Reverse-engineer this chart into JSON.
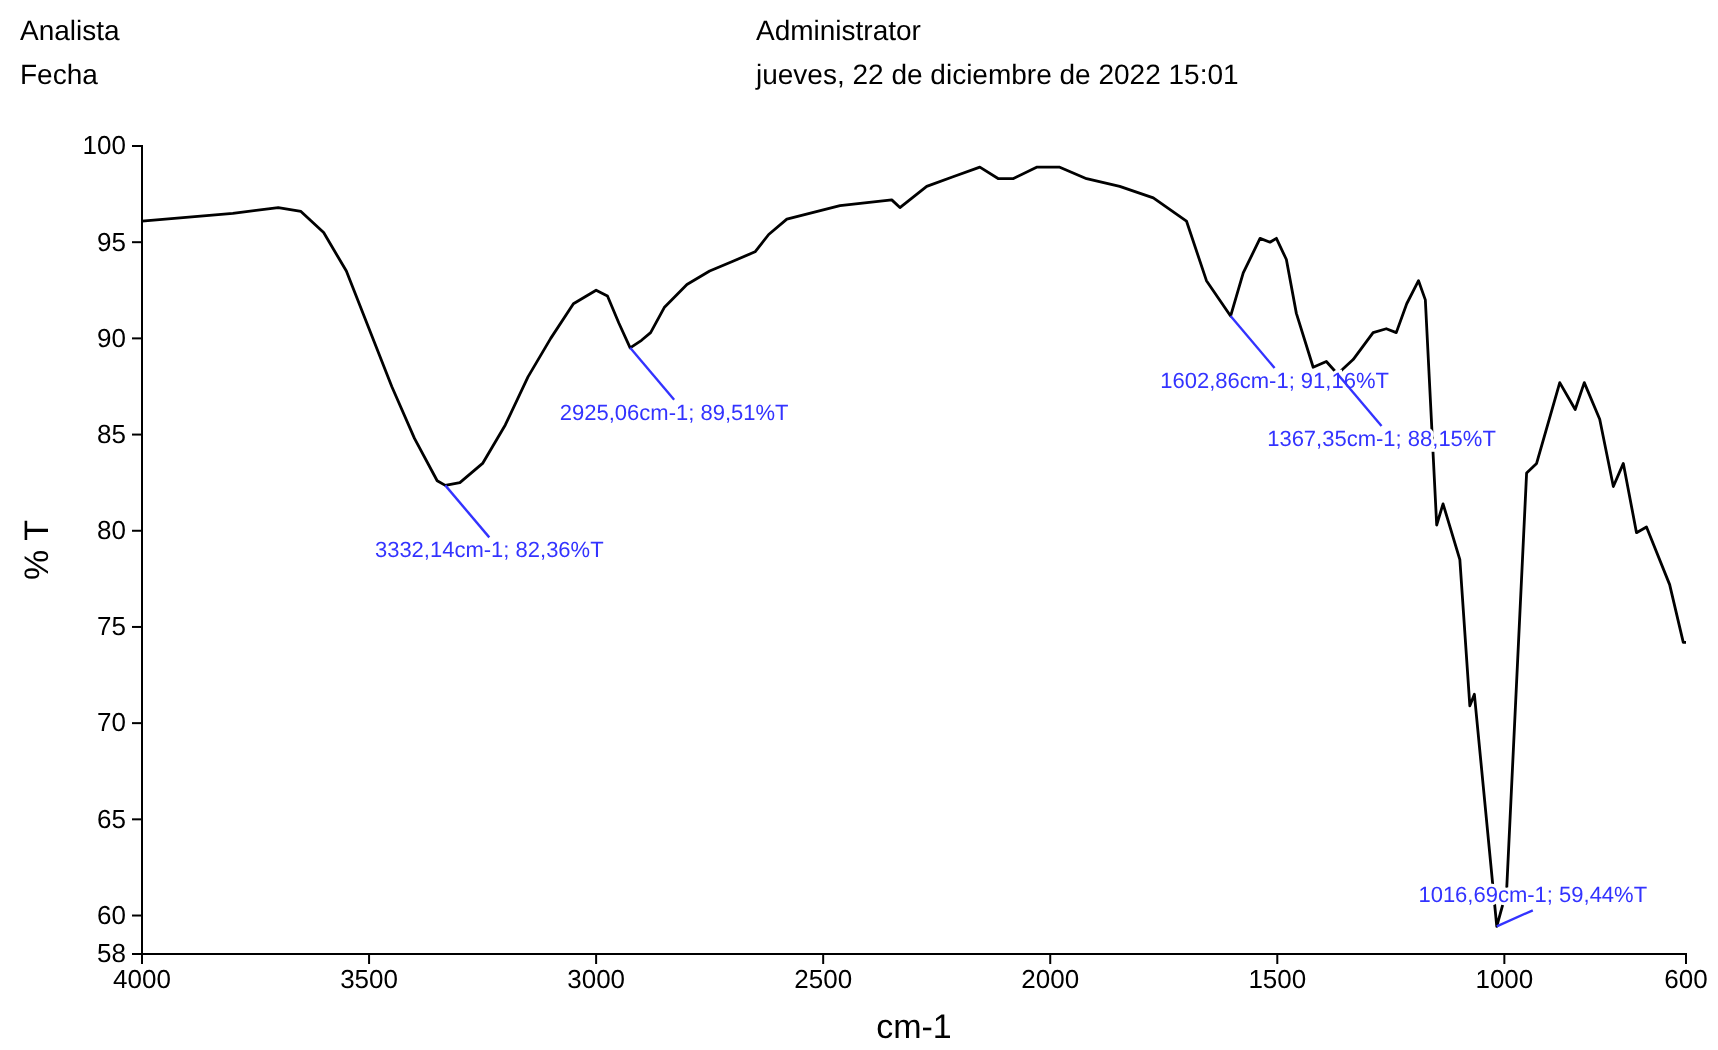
{
  "chart_data": {
    "type": "line",
    "xlabel": "cm-1",
    "ylabel": "% T",
    "xlim": [
      4000,
      600
    ],
    "ylim": [
      58,
      100
    ],
    "xticks": [
      4000,
      3500,
      3000,
      2500,
      2000,
      1500,
      1000,
      600
    ],
    "yticks": [
      58,
      60,
      65,
      70,
      75,
      80,
      85,
      90,
      95,
      100
    ],
    "grid": false,
    "marker": "none",
    "line_style": "solid",
    "series": [
      {
        "color": "#000000",
        "x": [
          4000,
          3800,
          3700,
          3650,
          3600,
          3550,
          3500,
          3450,
          3400,
          3350,
          3332.14,
          3300,
          3250,
          3200,
          3150,
          3100,
          3050,
          3000,
          2975,
          2950,
          2925.06,
          2900,
          2880,
          2850,
          2800,
          2750,
          2700,
          2650,
          2620,
          2580,
          2463,
          2349,
          2331,
          2272,
          2214,
          2155,
          2114,
          2082,
          2030,
          1979,
          1920,
          1847,
          1773,
          1700,
          1656,
          1602.86,
          1575,
          1538,
          1516,
          1502,
          1480,
          1458,
          1421,
          1392,
          1367.35,
          1333,
          1289,
          1260,
          1238,
          1215,
          1189,
          1174,
          1149,
          1135,
          1098,
          1076,
          1066,
          1016.69,
          995,
          951,
          929,
          878,
          844,
          824,
          790,
          760,
          738,
          709,
          687,
          636,
          606,
          600
        ],
        "values": [
          96.1,
          96.5,
          96.8,
          96.6,
          95.5,
          93.5,
          90.5,
          87.5,
          84.8,
          82.6,
          82.36,
          82.5,
          83.5,
          85.5,
          88,
          90,
          91.8,
          92.5,
          92.2,
          90.8,
          89.51,
          89.9,
          90.3,
          91.6,
          92.8,
          93.5,
          94,
          94.5,
          95.4,
          96.2,
          96.9,
          97.2,
          96.8,
          97.9,
          98.4,
          98.9,
          98.3,
          98.3,
          98.9,
          98.9,
          98.3,
          97.9,
          97.3,
          96.1,
          93,
          91.16,
          93.4,
          95.2,
          95,
          95.2,
          94.1,
          91.3,
          88.5,
          88.8,
          88.15,
          88.9,
          90.3,
          90.5,
          90.3,
          91.8,
          93,
          92,
          80.3,
          81.4,
          78.5,
          70.9,
          71.5,
          59.44,
          61.3,
          83,
          83.5,
          87.7,
          86.3,
          87.7,
          85.8,
          82.3,
          83.5,
          79.9,
          80.2,
          77.2,
          74.2,
          74.2
        ]
      }
    ],
    "annotations": [
      "Analista",
      "Fecha",
      "Administrator",
      "jueves, 22 de diciembre de 2022 15:01",
      {
        "text": "3332,14cm-1; 82,36%T",
        "x": 3332.14,
        "y": 82.36
      },
      {
        "text": "2925,06cm-1; 89,51%T",
        "x": 2925.06,
        "y": 89.51
      },
      {
        "text": "1602,86cm-1; 91,16%T",
        "x": 1602.86,
        "y": 91.16
      },
      {
        "text": "1367,35cm-1; 88,15%T",
        "x": 1367.35,
        "y": 88.15
      },
      {
        "text": "1016,69cm-1; 59,44%T",
        "x": 1016.69,
        "y": 59.44
      }
    ]
  }
}
